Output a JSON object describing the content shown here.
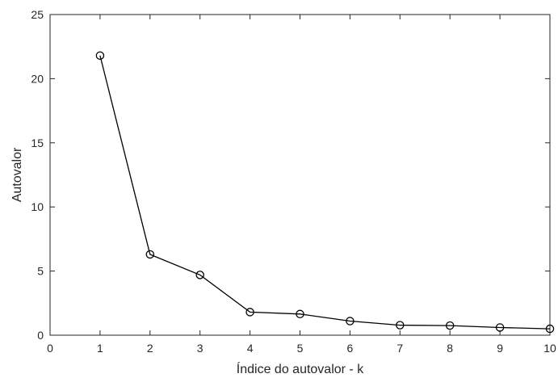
{
  "chart_data": {
    "type": "line",
    "title": "",
    "xlabel": "Índice do autovalor - k",
    "ylabel": "Autovalor",
    "xlim": [
      0,
      10
    ],
    "ylim": [
      0,
      25
    ],
    "xticks": [
      0,
      1,
      2,
      3,
      4,
      5,
      6,
      7,
      8,
      9,
      10
    ],
    "yticks": [
      0,
      5,
      10,
      15,
      20,
      25
    ],
    "grid": false,
    "marker": "circle",
    "line_color": "#000000",
    "series": [
      {
        "x": [
          1,
          2,
          3,
          4,
          5,
          6,
          7,
          8,
          9,
          10
        ],
        "y": [
          21.8,
          6.3,
          4.7,
          1.8,
          1.65,
          1.1,
          0.78,
          0.75,
          0.6,
          0.5
        ]
      }
    ]
  }
}
